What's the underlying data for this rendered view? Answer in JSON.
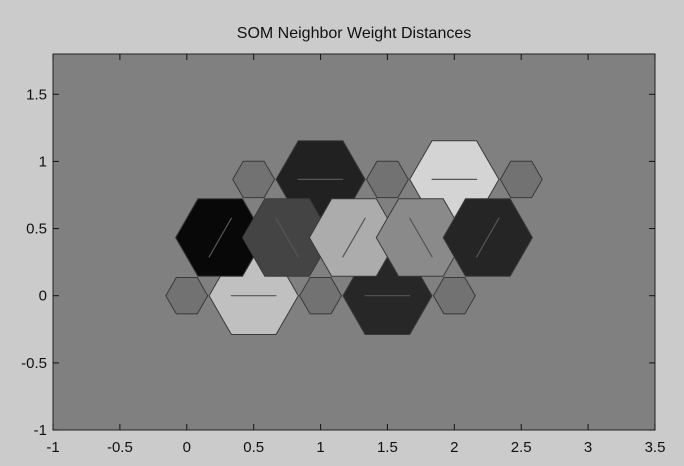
{
  "chart_data": {
    "type": "heatmap",
    "title": "SOM Neighbor Weight Distances",
    "xlabel": "",
    "ylabel": "",
    "xlim": [
      -1,
      3.5
    ],
    "ylim": [
      -1,
      1.8
    ],
    "xticks": [
      "-1",
      "-0.5",
      "0",
      "0.5",
      "1",
      "1.5",
      "2",
      "2.5",
      "3",
      "3.5"
    ],
    "yticks": [
      "-1",
      "-0.5",
      "0",
      "0.5",
      "1",
      "1.5"
    ],
    "grid": false,
    "colors": {
      "figure_background": "#cbcbcb",
      "axes_background": "#808080",
      "neuron_fill": "#727272",
      "edge": "#3a3a3a",
      "neighbor_line": "#555555"
    },
    "neurons": [
      {
        "x": 0,
        "y": 0
      },
      {
        "x": 1,
        "y": 0
      },
      {
        "x": 2,
        "y": 0
      },
      {
        "x": 0.5,
        "y": 0.866
      },
      {
        "x": 1.5,
        "y": 0.866
      },
      {
        "x": 2.5,
        "y": 0.866
      }
    ],
    "distance_cells": [
      {
        "x": 0.5,
        "y": 0,
        "shade": 0.82,
        "between": [
          0,
          1
        ]
      },
      {
        "x": 1.5,
        "y": 0,
        "shade": 0.14,
        "between": [
          1,
          2
        ]
      },
      {
        "x": 1.0,
        "y": 0.866,
        "shade": 0.11,
        "between": [
          3,
          4
        ]
      },
      {
        "x": 2.0,
        "y": 0.866,
        "shade": 0.91,
        "between": [
          4,
          5
        ]
      },
      {
        "x": 0.25,
        "y": 0.433,
        "shade": 0.0,
        "between": [
          0,
          3
        ]
      },
      {
        "x": 0.75,
        "y": 0.433,
        "shade": 0.27,
        "between": [
          1,
          3
        ]
      },
      {
        "x": 1.25,
        "y": 0.433,
        "shade": 0.73,
        "between": [
          1,
          4
        ]
      },
      {
        "x": 1.75,
        "y": 0.433,
        "shade": 0.58,
        "between": [
          2,
          4
        ]
      },
      {
        "x": 2.25,
        "y": 0.433,
        "shade": 0.13,
        "between": [
          2,
          5
        ]
      }
    ]
  }
}
